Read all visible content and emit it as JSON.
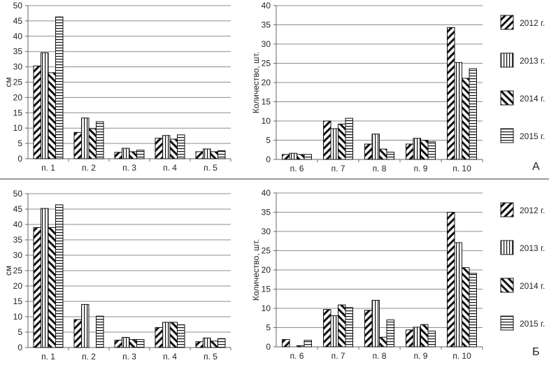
{
  "chart_data": [
    {
      "type": "bar",
      "panel": "А",
      "title": "",
      "xlabel": "",
      "ylabel": "см",
      "ylim": [
        0,
        50
      ],
      "ytick_step": 5,
      "grid": true,
      "categories": [
        "п. 1",
        "п. 2",
        "п. 3",
        "п. 4",
        "п. 5"
      ],
      "series": [
        {
          "name": "2012 г.",
          "values": [
            30.3,
            8.6,
            2.1,
            6.7,
            2.3
          ]
        },
        {
          "name": "2013 г.",
          "values": [
            34.6,
            13.3,
            3.4,
            7.6,
            3.2
          ]
        },
        {
          "name": "2014 г.",
          "values": [
            28.1,
            9.8,
            2.3,
            6.4,
            2.3
          ]
        },
        {
          "name": "2015 г.",
          "values": [
            46.3,
            12.1,
            2.8,
            7.8,
            2.6
          ]
        }
      ]
    },
    {
      "type": "bar",
      "panel": "А",
      "title": "",
      "xlabel": "",
      "ylabel": "Количество,  шт.",
      "ylim": [
        0,
        40
      ],
      "ytick_step": 5,
      "grid": true,
      "legend": "right",
      "categories": [
        "п. 6",
        "п. 7",
        "п. 8",
        "п. 9",
        "п. 10"
      ],
      "series": [
        {
          "name": "2012 г.",
          "values": [
            1.3,
            10.0,
            4.0,
            4.0,
            34.3
          ]
        },
        {
          "name": "2013 г.",
          "values": [
            1.6,
            8.0,
            6.6,
            5.5,
            25.2
          ]
        },
        {
          "name": "2014 г.",
          "values": [
            1.3,
            9.2,
            2.7,
            5.0,
            21.1
          ]
        },
        {
          "name": "2015 г.",
          "values": [
            1.3,
            10.7,
            1.9,
            4.6,
            23.6
          ]
        }
      ]
    },
    {
      "type": "bar",
      "panel": "Б",
      "title": "",
      "xlabel": "",
      "ylabel": "см",
      "ylim": [
        0,
        50
      ],
      "ytick_step": 5,
      "grid": true,
      "categories": [
        "п. 1",
        "п. 2",
        "п. 3",
        "п. 4",
        "п. 5"
      ],
      "series": [
        {
          "name": "2012 г.",
          "values": [
            39.0,
            9.1,
            2.4,
            6.5,
            1.9
          ]
        },
        {
          "name": "2013 г.",
          "values": [
            45.2,
            14.0,
            3.3,
            8.2,
            3.1
          ]
        },
        {
          "name": "2014 г.",
          "values": [
            39.0,
            0,
            2.6,
            8.2,
            2.1
          ]
        },
        {
          "name": "2015 г.",
          "values": [
            46.4,
            10.2,
            2.6,
            7.4,
            2.9
          ]
        }
      ]
    },
    {
      "type": "bar",
      "panel": "Б",
      "title": "",
      "xlabel": "",
      "ylabel": "Количество,  шт.",
      "ylim": [
        0,
        40
      ],
      "ytick_step": 5,
      "grid": true,
      "legend": "right",
      "categories": [
        "п. 6",
        "п. 7",
        "п. 8",
        "п. 9",
        "п. 10"
      ],
      "series": [
        {
          "name": "2012 г.",
          "values": [
            1.9,
            9.7,
            9.5,
            4.4,
            35.0
          ]
        },
        {
          "name": "2013 г.",
          "values": [
            0,
            8.1,
            12.1,
            5.1,
            27.1
          ]
        },
        {
          "name": "2014 г.",
          "values": [
            0.3,
            10.9,
            2.5,
            5.8,
            20.6
          ]
        },
        {
          "name": "2015 г.",
          "values": [
            1.7,
            10.2,
            7.0,
            4.1,
            19.1
          ]
        }
      ]
    }
  ],
  "panels": [
    "А",
    "Б"
  ],
  "legend": [
    "2012 г.",
    "2013 г.",
    "2014 г.",
    "2015 г."
  ],
  "colors": {
    "ink": "#111111",
    "grid": "#8c8c8c",
    "bg": "#ffffff"
  }
}
